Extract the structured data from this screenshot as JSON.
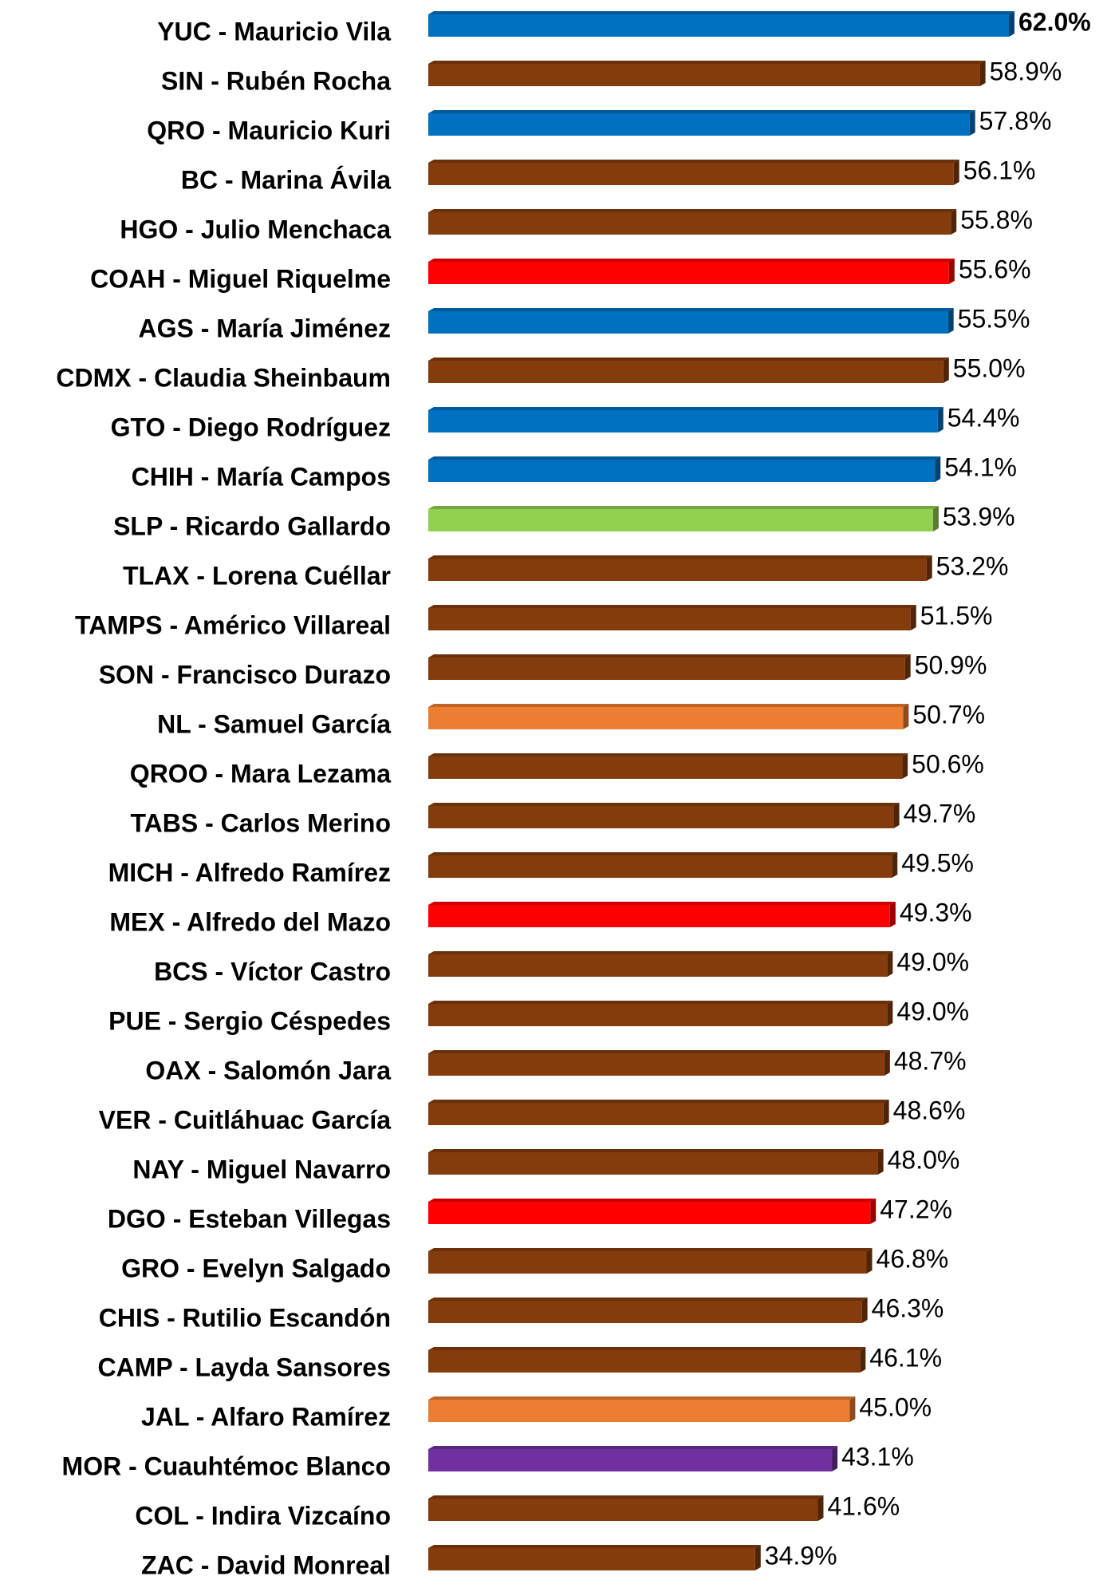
{
  "chart_data": {
    "type": "bar",
    "orientation": "horizontal",
    "categories": [
      "YUC - Mauricio Vila",
      "SIN - Rubén Rocha",
      "QRO - Mauricio Kuri",
      "BC - Marina Ávila",
      "HGO - Julio Menchaca",
      "COAH - Miguel Riquelme",
      "AGS - María Jiménez",
      "CDMX - Claudia Sheinbaum",
      "GTO - Diego Rodríguez",
      "CHIH - María Campos",
      "SLP - Ricardo Gallardo",
      "TLAX - Lorena Cuéllar",
      "TAMPS - Américo Villareal",
      "SON - Francisco Durazo",
      "NL - Samuel García",
      "QROO - Mara Lezama",
      "TABS - Carlos Merino",
      "MICH - Alfredo Ramírez",
      "MEX - Alfredo del Mazo",
      "BCS - Víctor Castro",
      "PUE - Sergio Céspedes",
      "OAX - Salomón Jara",
      "VER - Cuitláhuac García",
      "NAY - Miguel Navarro",
      "DGO - Esteban Villegas",
      "GRO - Evelyn Salgado",
      "CHIS - Rutilio Escandón",
      "CAMP - Layda Sansores",
      "JAL - Alfaro Ramírez",
      "MOR - Cuauhtémoc Blanco",
      "COL - Indira Vizcaíno",
      "ZAC - David Monreal"
    ],
    "values": [
      62.0,
      58.9,
      57.8,
      56.1,
      55.8,
      55.6,
      55.5,
      55.0,
      54.4,
      54.1,
      53.9,
      53.2,
      51.5,
      50.9,
      50.7,
      50.6,
      49.7,
      49.5,
      49.3,
      49.0,
      49.0,
      48.7,
      48.6,
      48.0,
      47.2,
      46.8,
      46.3,
      46.1,
      45.0,
      43.1,
      41.6,
      34.9
    ],
    "value_labels": [
      "62.0%",
      "58.9%",
      "57.8%",
      "56.1%",
      "55.8%",
      "55.6%",
      "55.5%",
      "55.0%",
      "54.4%",
      "54.1%",
      "53.9%",
      "53.2%",
      "51.5%",
      "50.9%",
      "50.7%",
      "50.6%",
      "49.7%",
      "49.5%",
      "49.3%",
      "49.0%",
      "49.0%",
      "48.7%",
      "48.6%",
      "48.0%",
      "47.2%",
      "46.8%",
      "46.3%",
      "46.1%",
      "45.0%",
      "43.1%",
      "41.6%",
      "34.9%"
    ],
    "colors": [
      "#0070c0",
      "#843c0c",
      "#0070c0",
      "#843c0c",
      "#843c0c",
      "#ff0000",
      "#0070c0",
      "#843c0c",
      "#0070c0",
      "#0070c0",
      "#92d050",
      "#843c0c",
      "#843c0c",
      "#843c0c",
      "#ed7d31",
      "#843c0c",
      "#843c0c",
      "#843c0c",
      "#ff0000",
      "#843c0c",
      "#843c0c",
      "#843c0c",
      "#843c0c",
      "#843c0c",
      "#ff0000",
      "#843c0c",
      "#843c0c",
      "#843c0c",
      "#ed7d31",
      "#7030a0",
      "#843c0c",
      "#843c0c"
    ]
  }
}
